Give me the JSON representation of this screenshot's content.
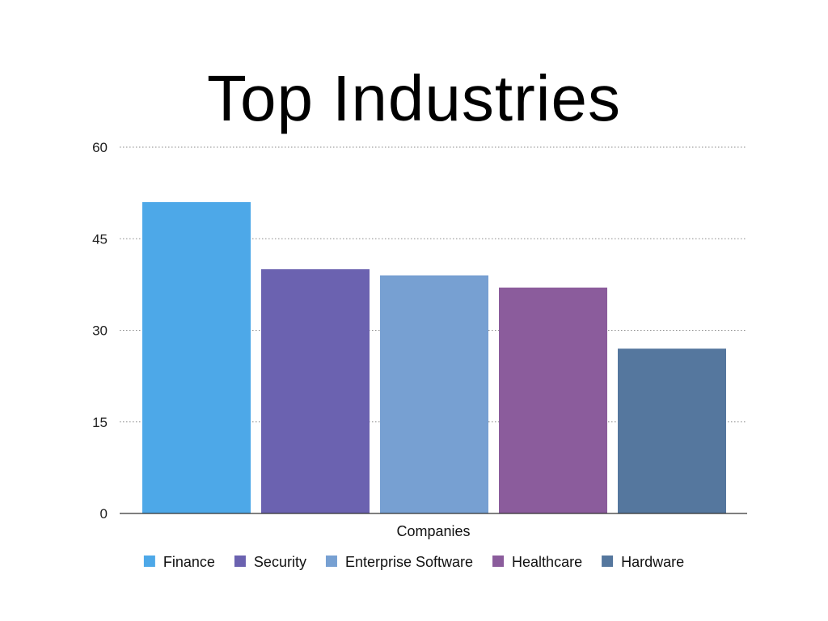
{
  "chart_data": {
    "type": "bar",
    "title": "Top Industries",
    "xlabel": "Companies",
    "ylabel": "",
    "ylim": [
      0,
      60
    ],
    "yticks": [
      0,
      15,
      30,
      45,
      60
    ],
    "grid": true,
    "legend_position": "bottom",
    "categories": [
      "Companies"
    ],
    "series": [
      {
        "name": "Finance",
        "values": [
          51
        ],
        "color": "#4DA8E8"
      },
      {
        "name": "Security",
        "values": [
          40
        ],
        "color": "#6B62B0"
      },
      {
        "name": "Enterprise Software",
        "values": [
          39
        ],
        "color": "#77A0D2"
      },
      {
        "name": "Healthcare",
        "values": [
          37
        ],
        "color": "#8B5C9C"
      },
      {
        "name": "Hardware",
        "values": [
          27
        ],
        "color": "#55779E"
      }
    ]
  }
}
